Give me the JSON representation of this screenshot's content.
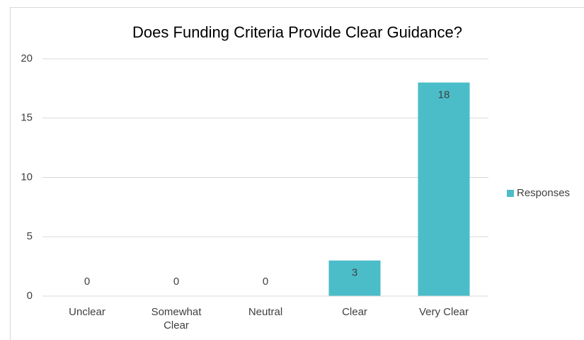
{
  "chart_data": {
    "type": "bar",
    "title": "Does Funding Criteria Provide Clear Guidance?",
    "categories": [
      "Unclear",
      "Somewhat Clear",
      "Neutral",
      "Clear",
      "Very Clear"
    ],
    "series": [
      {
        "name": "Responses",
        "color": "#4bbdc8",
        "values": [
          0,
          0,
          0,
          3,
          18
        ]
      }
    ],
    "ylim": [
      0,
      20
    ],
    "yticks": [
      0,
      5,
      10,
      15,
      20
    ],
    "grid": true,
    "legend": "right"
  }
}
